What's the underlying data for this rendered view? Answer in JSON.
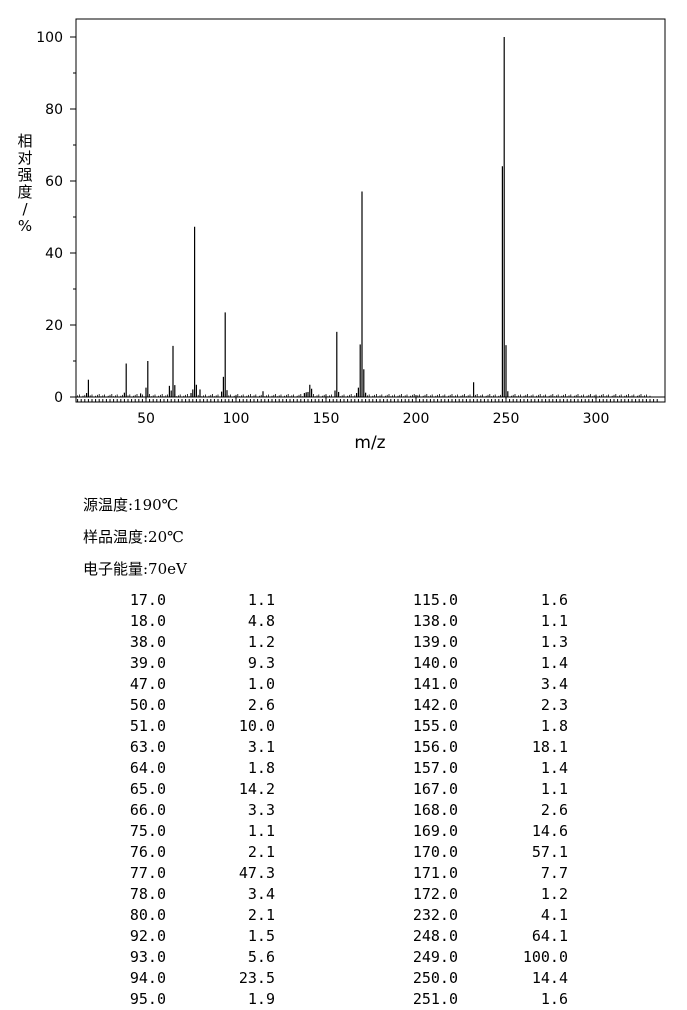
{
  "chart_data": {
    "type": "bar",
    "xlabel": "m/z",
    "ylabel": "相对强度/%",
    "xlim": [
      10,
      335
    ],
    "ylim": [
      0,
      105
    ],
    "x_ticks": [
      "50",
      "100",
      "150",
      "200",
      "250",
      "300"
    ],
    "y_ticks": [
      "0",
      "20",
      "40",
      "60",
      "80",
      "100"
    ],
    "x": [
      17,
      18,
      38,
      39,
      47,
      50,
      51,
      63,
      64,
      65,
      66,
      75,
      76,
      77,
      78,
      80,
      92,
      93,
      94,
      95,
      115,
      138,
      139,
      140,
      141,
      142,
      155,
      156,
      157,
      167,
      168,
      169,
      170,
      171,
      172,
      232,
      248,
      249,
      250,
      251
    ],
    "values": [
      1.1,
      4.8,
      1.2,
      9.3,
      1.0,
      2.6,
      10.0,
      3.1,
      1.8,
      14.2,
      3.3,
      1.1,
      2.1,
      47.3,
      3.4,
      2.1,
      1.5,
      5.6,
      23.5,
      1.9,
      1.6,
      1.1,
      1.3,
      1.4,
      3.4,
      2.3,
      1.8,
      18.1,
      1.4,
      1.1,
      2.6,
      14.6,
      57.1,
      7.7,
      1.2,
      4.1,
      64.1,
      100.0,
      14.4,
      1.6
    ]
  },
  "conditions": {
    "source_temp": "源温度:190℃",
    "sample_temp": "样品温度:20℃",
    "electron_energy": "电子能量:70eV"
  },
  "peak_table": {
    "left": [
      {
        "mz": "17.0",
        "ab": "1.1"
      },
      {
        "mz": "18.0",
        "ab": "4.8"
      },
      {
        "mz": "38.0",
        "ab": "1.2"
      },
      {
        "mz": "39.0",
        "ab": "9.3"
      },
      {
        "mz": "47.0",
        "ab": "1.0"
      },
      {
        "mz": "50.0",
        "ab": "2.6"
      },
      {
        "mz": "51.0",
        "ab": "10.0"
      },
      {
        "mz": "63.0",
        "ab": "3.1"
      },
      {
        "mz": "64.0",
        "ab": "1.8"
      },
      {
        "mz": "65.0",
        "ab": "14.2"
      },
      {
        "mz": "66.0",
        "ab": "3.3"
      },
      {
        "mz": "75.0",
        "ab": "1.1"
      },
      {
        "mz": "76.0",
        "ab": "2.1"
      },
      {
        "mz": "77.0",
        "ab": "47.3"
      },
      {
        "mz": "78.0",
        "ab": "3.4"
      },
      {
        "mz": "80.0",
        "ab": "2.1"
      },
      {
        "mz": "92.0",
        "ab": "1.5"
      },
      {
        "mz": "93.0",
        "ab": "5.6"
      },
      {
        "mz": "94.0",
        "ab": "23.5"
      },
      {
        "mz": "95.0",
        "ab": "1.9"
      }
    ],
    "right": [
      {
        "mz": "115.0",
        "ab": "1.6"
      },
      {
        "mz": "138.0",
        "ab": "1.1"
      },
      {
        "mz": "139.0",
        "ab": "1.3"
      },
      {
        "mz": "140.0",
        "ab": "1.4"
      },
      {
        "mz": "141.0",
        "ab": "3.4"
      },
      {
        "mz": "142.0",
        "ab": "2.3"
      },
      {
        "mz": "155.0",
        "ab": "1.8"
      },
      {
        "mz": "156.0",
        "ab": "18.1"
      },
      {
        "mz": "157.0",
        "ab": "1.4"
      },
      {
        "mz": "167.0",
        "ab": "1.1"
      },
      {
        "mz": "168.0",
        "ab": "2.6"
      },
      {
        "mz": "169.0",
        "ab": "14.6"
      },
      {
        "mz": "170.0",
        "ab": "57.1"
      },
      {
        "mz": "171.0",
        "ab": "7.7"
      },
      {
        "mz": "172.0",
        "ab": "1.2"
      },
      {
        "mz": "232.0",
        "ab": "4.1"
      },
      {
        "mz": "248.0",
        "ab": "64.1"
      },
      {
        "mz": "249.0",
        "ab": "100.0"
      },
      {
        "mz": "250.0",
        "ab": "14.4"
      },
      {
        "mz": "251.0",
        "ab": "1.6"
      }
    ]
  }
}
